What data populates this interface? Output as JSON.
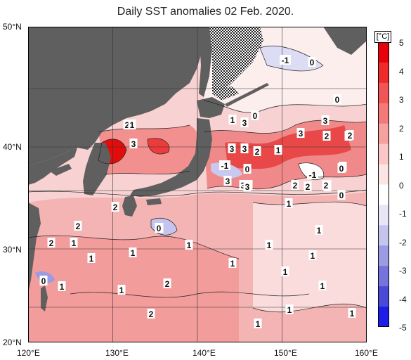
{
  "title": "Daily SST anomalies 02 Feb. 2020.",
  "lat_labels": [
    "50°N",
    "40°N",
    "30°N",
    "20°N"
  ],
  "lon_labels": [
    "120°E",
    "130°E",
    "140°E",
    "150°E",
    "160°E"
  ],
  "colorbar": {
    "unit": "[°C]",
    "ticks": [
      "5",
      "4",
      "3",
      "2",
      "1",
      "0",
      "-1",
      "-2",
      "-3",
      "-4",
      "-5"
    ],
    "colors_top_to_bottom": [
      "#e8000a",
      "#ef2a2a",
      "#f25555",
      "#f47a7a",
      "#f7a0a0",
      "#fac6c6",
      "#fde4e4",
      "#ffffff",
      "#e6e6f7",
      "#c4c4ee",
      "#9b9be3",
      "#7474dc",
      "#4a4ad7",
      "#1e1ee8"
    ]
  },
  "contour_labels": [
    {
      "t": "2"
    },
    {
      "t": "1"
    },
    {
      "t": "3"
    },
    {
      "t": "1"
    },
    {
      "t": "3"
    },
    {
      "t": "0"
    },
    {
      "t": "-1"
    },
    {
      "t": "0"
    },
    {
      "t": "3"
    },
    {
      "t": "3"
    },
    {
      "t": "2"
    },
    {
      "t": "1"
    },
    {
      "t": "2"
    },
    {
      "t": "0"
    },
    {
      "t": "-1"
    },
    {
      "t": "0"
    },
    {
      "t": "3"
    },
    {
      "t": "3"
    },
    {
      "t": "2"
    },
    {
      "t": "2"
    },
    {
      "t": "1"
    },
    {
      "t": "3"
    },
    {
      "t": "2"
    },
    {
      "t": "2"
    },
    {
      "t": "3"
    },
    {
      "t": "0"
    },
    {
      "t": "0"
    },
    {
      "t": "-1"
    },
    {
      "t": "3"
    },
    {
      "t": "3"
    },
    {
      "t": "2"
    },
    {
      "t": "2"
    },
    {
      "t": "0"
    },
    {
      "t": "0"
    },
    {
      "t": "1"
    },
    {
      "t": "2"
    },
    {
      "t": "2"
    },
    {
      "t": "0"
    },
    {
      "t": "1"
    },
    {
      "t": "1"
    },
    {
      "t": "2"
    },
    {
      "t": "1"
    },
    {
      "t": "1"
    },
    {
      "t": "1"
    },
    {
      "t": "1"
    },
    {
      "t": "1"
    },
    {
      "t": "1"
    },
    {
      "t": "0"
    },
    {
      "t": "1"
    },
    {
      "t": "1"
    },
    {
      "t": "2"
    },
    {
      "t": "1"
    },
    {
      "t": "1"
    },
    {
      "t": "2"
    },
    {
      "t": "1"
    },
    {
      "t": "1"
    },
    {
      "t": "1"
    }
  ]
}
